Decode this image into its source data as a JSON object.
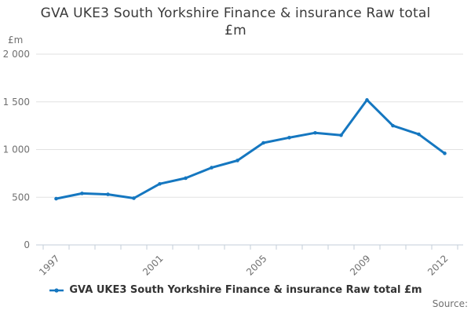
{
  "title": {
    "line1": "GVA UKE3 South Yorkshire Finance & insurance Raw total",
    "line2": "£m"
  },
  "y_axis_unit": "£m",
  "source_label": "Source:",
  "legend": {
    "label": "GVA UKE3 South Yorkshire Finance & insurance Raw total £m",
    "marker": "line-with-dot"
  },
  "colors": {
    "line": "#1577c0",
    "grid": "#e2e2e2",
    "axis": "#c3cdd9",
    "tick_label": "#707070",
    "title_text": "#3a3a3a",
    "legend_text": "#333333",
    "source_text": "#707070"
  },
  "chart_data": {
    "type": "line",
    "title": "GVA UKE3 South Yorkshire Finance & insurance Raw total £m",
    "xlabel": "",
    "ylabel": "£m",
    "x": [
      1997,
      1998,
      1999,
      2000,
      2001,
      2002,
      2003,
      2004,
      2005,
      2006,
      2007,
      2008,
      2009,
      2010,
      2011,
      2012
    ],
    "series": [
      {
        "name": "GVA UKE3 South Yorkshire Finance & insurance Raw total £m",
        "values": [
          485,
          540,
          530,
          490,
          640,
          700,
          810,
          885,
          1070,
          1125,
          1175,
          1150,
          1520,
          1250,
          1160,
          960
        ]
      }
    ],
    "ylim": [
      0,
      2000
    ],
    "grid": true,
    "legend_position": "bottom",
    "y_ticks": [
      {
        "value": 0,
        "label": "0"
      },
      {
        "value": 500,
        "label": "500"
      },
      {
        "value": 1000,
        "label": "1 000"
      },
      {
        "value": 1500,
        "label": "1 500"
      },
      {
        "value": 2000,
        "label": "2 000"
      }
    ],
    "x_labeled_ticks": [
      "1997",
      "2001",
      "2005",
      "2009",
      "2012"
    ]
  }
}
